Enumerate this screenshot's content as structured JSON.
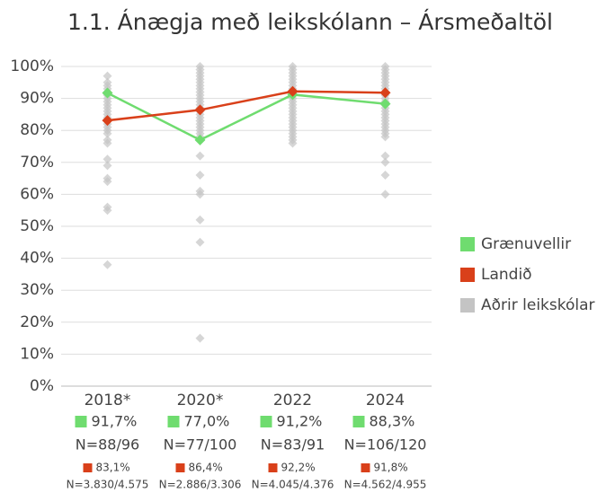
{
  "chart_data": {
    "type": "line",
    "title": "1.1. Ánægja með leikskólann – Ársmeðaltöl",
    "categories": [
      "2018*",
      "2020*",
      "2022",
      "2024"
    ],
    "ylim": [
      0,
      100
    ],
    "yticks": [
      {
        "value": 0,
        "label": "0%"
      },
      {
        "value": 10,
        "label": "10%"
      },
      {
        "value": 20,
        "label": "20%"
      },
      {
        "value": 30,
        "label": "30%"
      },
      {
        "value": 40,
        "label": "40%"
      },
      {
        "value": 50,
        "label": "50%"
      },
      {
        "value": 60,
        "label": "60%"
      },
      {
        "value": 70,
        "label": "70%"
      },
      {
        "value": 80,
        "label": "80%"
      },
      {
        "value": 90,
        "label": "90%"
      },
      {
        "value": 100,
        "label": "100%"
      }
    ],
    "grid": true,
    "legend": "right",
    "series": [
      {
        "name": "Grænuvellir",
        "color": "#6fdc6f",
        "values": [
          91.7,
          77.0,
          91.2,
          88.3
        ],
        "value_labels": [
          "91,7%",
          "77,0%",
          "91,2%",
          "88,3%"
        ],
        "n_labels": [
          "N=88/96",
          "N=77/100",
          "N=83/91",
          "N=106/120"
        ]
      },
      {
        "name": "Landið",
        "color": "#d9401a",
        "values": [
          83.1,
          86.4,
          92.2,
          91.8
        ],
        "value_labels": [
          "83,1%",
          "86,4%",
          "92,2%",
          "91,8%"
        ],
        "n_labels": [
          "N=3.830/4.575",
          "N=2.886/3.306",
          "N=4.045/4.376",
          "N=4.562/4.955"
        ]
      },
      {
        "name": "Aðrir leikskólar",
        "color": "#c4c4c4",
        "values": [
          [
            97,
            95,
            94,
            93,
            92,
            91,
            90,
            89,
            88,
            87,
            86,
            85,
            84,
            83,
            82,
            81,
            80,
            79,
            77,
            76,
            71,
            69,
            65,
            64,
            56,
            55,
            38
          ],
          [
            100,
            99,
            98,
            97,
            96,
            95,
            94,
            93,
            92,
            91,
            90,
            89,
            88,
            87,
            86,
            85,
            84,
            83,
            82,
            81,
            80,
            79,
            78,
            72,
            66,
            61,
            60,
            52,
            45,
            15
          ],
          [
            100,
            99,
            98,
            97,
            96,
            95,
            94,
            93,
            92,
            91,
            90,
            89,
            88,
            87,
            86,
            85,
            84,
            83,
            82,
            81,
            80,
            79,
            78,
            77,
            76
          ],
          [
            100,
            99,
            98,
            97,
            96,
            95,
            94,
            93,
            92,
            91,
            90,
            89,
            88,
            87,
            86,
            85,
            84,
            83,
            82,
            81,
            80,
            79,
            78,
            72,
            70,
            66,
            60
          ]
        ]
      }
    ]
  }
}
